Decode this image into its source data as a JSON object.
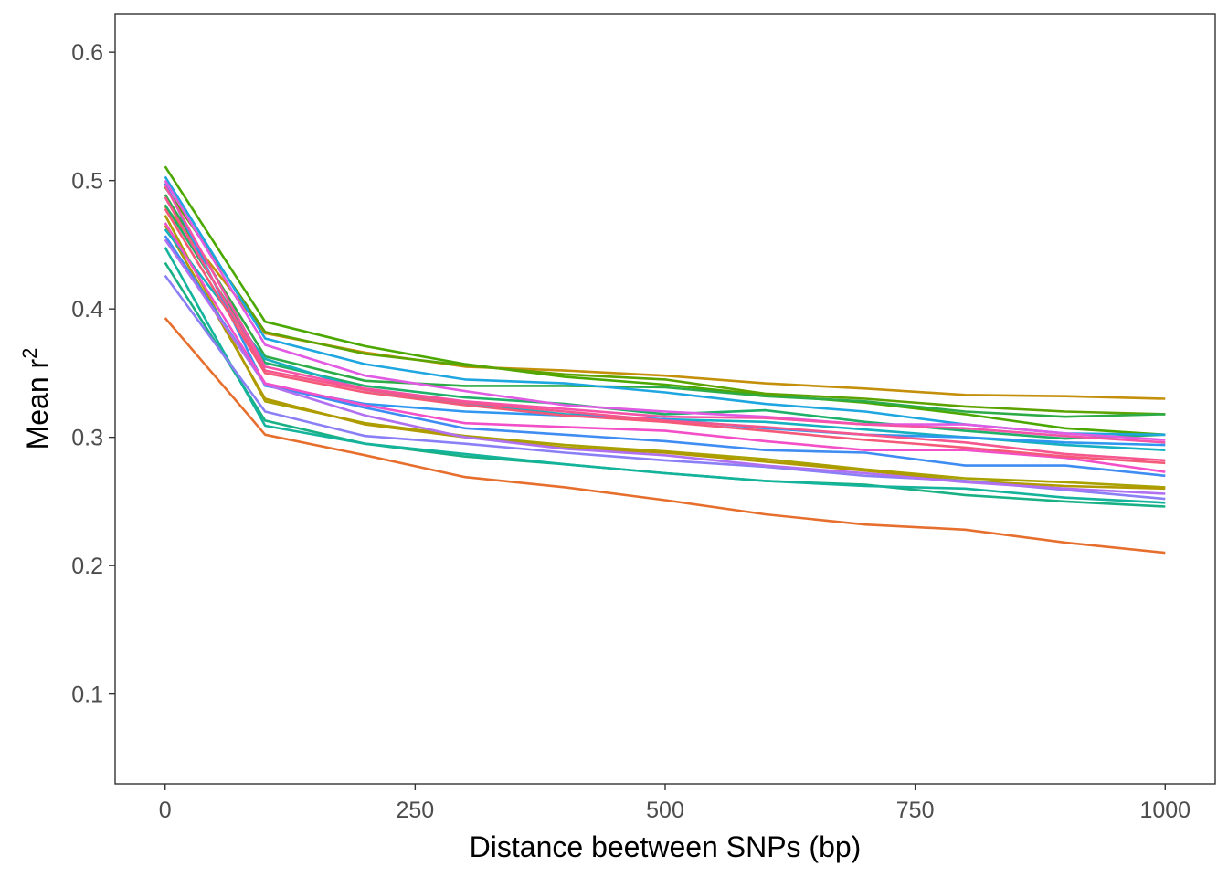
{
  "chart_data": {
    "type": "line",
    "title": "",
    "xlabel": "Distance beetween SNPs (bp)",
    "ylabel": "Mean r",
    "ylabel_superscript": "2",
    "xlim": [
      -50,
      1050
    ],
    "ylim": [
      0.03,
      0.63
    ],
    "x_ticks": [
      0,
      250,
      500,
      750,
      1000
    ],
    "y_ticks": [
      0.1,
      0.2,
      0.3,
      0.4,
      0.5,
      0.6
    ],
    "x_tick_labels": [
      "0",
      "250",
      "500",
      "750",
      "1000"
    ],
    "y_tick_labels": [
      "0.1",
      "0.2",
      "0.3",
      "0.4",
      "0.5",
      "0.6"
    ],
    "grid": false,
    "legend": "none",
    "x": [
      0,
      100,
      200,
      300,
      400,
      500,
      600,
      700,
      800,
      900,
      1000
    ],
    "series": [
      {
        "color": "#E76F2E",
        "values": [
          0.393,
          0.302,
          0.286,
          0.269,
          0.261,
          0.251,
          0.24,
          0.232,
          0.228,
          0.218,
          0.21
        ]
      },
      {
        "color": "#C4900C",
        "values": [
          0.48,
          0.381,
          0.366,
          0.355,
          0.352,
          0.348,
          0.342,
          0.338,
          0.333,
          0.332,
          0.33
        ]
      },
      {
        "color": "#A9A100",
        "values": [
          0.473,
          0.328,
          0.311,
          0.301,
          0.294,
          0.289,
          0.283,
          0.275,
          0.268,
          0.265,
          0.261
        ]
      },
      {
        "color": "#B09A00",
        "values": [
          0.465,
          0.33,
          0.31,
          0.3,
          0.292,
          0.288,
          0.281,
          0.274,
          0.266,
          0.262,
          0.26
        ]
      },
      {
        "color": "#4BA800",
        "values": [
          0.511,
          0.39,
          0.371,
          0.357,
          0.347,
          0.341,
          0.333,
          0.327,
          0.318,
          0.307,
          0.302
        ]
      },
      {
        "color": "#5DA300",
        "values": [
          0.495,
          0.382,
          0.365,
          0.356,
          0.349,
          0.345,
          0.334,
          0.33,
          0.324,
          0.32,
          0.318
        ]
      },
      {
        "color": "#2DAB47",
        "values": [
          0.489,
          0.363,
          0.344,
          0.34,
          0.34,
          0.339,
          0.332,
          0.328,
          0.32,
          0.316,
          0.318
        ]
      },
      {
        "color": "#1FB06A",
        "values": [
          0.481,
          0.358,
          0.34,
          0.331,
          0.326,
          0.318,
          0.321,
          0.312,
          0.305,
          0.299,
          0.302
        ]
      },
      {
        "color": "#18B084",
        "values": [
          0.436,
          0.313,
          0.295,
          0.285,
          0.279,
          0.272,
          0.266,
          0.263,
          0.255,
          0.25,
          0.246
        ]
      },
      {
        "color": "#14B39B",
        "values": [
          0.448,
          0.309,
          0.295,
          0.287,
          0.279,
          0.272,
          0.266,
          0.262,
          0.26,
          0.253,
          0.249
        ]
      },
      {
        "color": "#16B0C0",
        "values": [
          0.462,
          0.361,
          0.337,
          0.326,
          0.318,
          0.314,
          0.312,
          0.306,
          0.3,
          0.294,
          0.29
        ]
      },
      {
        "color": "#1EA6E0",
        "values": [
          0.503,
          0.377,
          0.357,
          0.345,
          0.342,
          0.335,
          0.326,
          0.32,
          0.31,
          0.303,
          0.302
        ]
      },
      {
        "color": "#2F97F0",
        "values": [
          0.498,
          0.34,
          0.326,
          0.32,
          0.317,
          0.314,
          0.307,
          0.302,
          0.3,
          0.296,
          0.294
        ]
      },
      {
        "color": "#3F8CF3",
        "values": [
          0.457,
          0.341,
          0.323,
          0.307,
          0.302,
          0.297,
          0.29,
          0.288,
          0.278,
          0.278,
          0.27
        ]
      },
      {
        "color": "#8A7FF5",
        "values": [
          0.426,
          0.32,
          0.301,
          0.295,
          0.288,
          0.282,
          0.277,
          0.27,
          0.266,
          0.259,
          0.252
        ]
      },
      {
        "color": "#B070F0",
        "values": [
          0.454,
          0.341,
          0.317,
          0.3,
          0.291,
          0.286,
          0.278,
          0.272,
          0.265,
          0.26,
          0.256
        ]
      },
      {
        "color": "#E15AE3",
        "values": [
          0.5,
          0.372,
          0.348,
          0.336,
          0.325,
          0.32,
          0.316,
          0.31,
          0.31,
          0.303,
          0.298
        ]
      },
      {
        "color": "#F24FC8",
        "values": [
          0.467,
          0.342,
          0.325,
          0.311,
          0.308,
          0.305,
          0.297,
          0.29,
          0.29,
          0.284,
          0.273
        ]
      },
      {
        "color": "#F453A8",
        "values": [
          0.496,
          0.355,
          0.338,
          0.328,
          0.322,
          0.316,
          0.315,
          0.31,
          0.307,
          0.301,
          0.296
        ]
      },
      {
        "color": "#F5568E",
        "values": [
          0.487,
          0.352,
          0.337,
          0.327,
          0.32,
          0.313,
          0.308,
          0.302,
          0.296,
          0.287,
          0.282
        ]
      },
      {
        "color": "#F45A78",
        "values": [
          0.478,
          0.35,
          0.335,
          0.325,
          0.317,
          0.312,
          0.305,
          0.298,
          0.292,
          0.285,
          0.28
        ]
      }
    ]
  }
}
